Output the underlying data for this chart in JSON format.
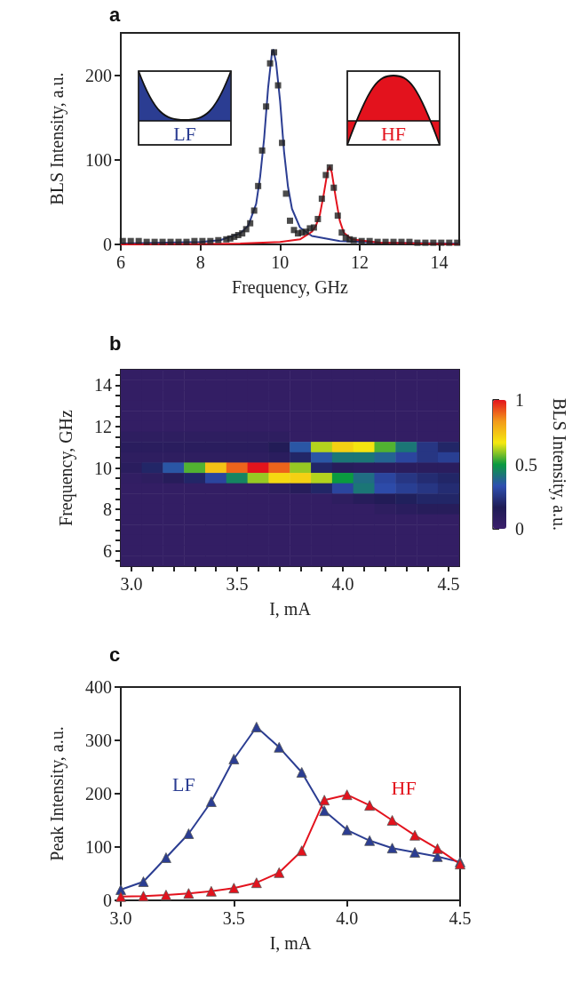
{
  "chart_data": [
    {
      "type": "line",
      "title": "a",
      "xlabel": "Frequency, GHz",
      "ylabel": "BLS Intensity, a.u.",
      "xlim": [
        6,
        14.5
      ],
      "ylim": [
        0,
        250
      ],
      "xticks": [
        6,
        8,
        10,
        12,
        14
      ],
      "yticks": [
        0,
        100,
        200
      ],
      "annotations": [
        "LF",
        "HF"
      ],
      "series": [
        {
          "type": "scatter",
          "marker": "square",
          "color": "#1f1f1f",
          "x": [
            6.05,
            6.25,
            6.45,
            6.65,
            6.85,
            7.05,
            7.25,
            7.45,
            7.65,
            7.85,
            8.05,
            8.25,
            8.45,
            8.65,
            8.75,
            8.85,
            8.95,
            9.05,
            9.15,
            9.25,
            9.35,
            9.45,
            9.55,
            9.65,
            9.75,
            9.85,
            9.95,
            10.05,
            10.15,
            10.25,
            10.35,
            10.45,
            10.55,
            10.65,
            10.75,
            10.85,
            10.95,
            11.05,
            11.15,
            11.25,
            11.35,
            11.45,
            11.55,
            11.65,
            11.75,
            11.85,
            12.05,
            12.25,
            12.45,
            12.65,
            12.85,
            13.05,
            13.25,
            13.45,
            13.65,
            13.85,
            14.05,
            14.25,
            14.45
          ],
          "values": [
            4,
            4,
            4,
            3,
            3,
            3,
            3,
            3,
            3,
            4,
            4,
            4,
            5,
            6,
            7,
            9,
            11,
            13,
            18,
            25,
            40,
            69,
            111,
            163,
            214,
            227,
            188,
            120,
            60,
            28,
            17,
            13,
            14,
            15,
            19,
            20,
            30,
            54,
            82,
            91,
            67,
            34,
            14,
            8,
            6,
            5,
            4,
            4,
            3,
            3,
            3,
            3,
            3,
            2,
            2,
            2,
            2,
            2,
            2
          ]
        },
        {
          "type": "line",
          "marker": "none",
          "color": "#2b3d92",
          "x": [
            6,
            8,
            8.5,
            9,
            9.2,
            9.4,
            9.5,
            9.6,
            9.7,
            9.8,
            9.83,
            9.9,
            10,
            10.1,
            10.2,
            10.3,
            10.5,
            10.8,
            11.5,
            12.5,
            14.5
          ],
          "values": [
            1,
            3,
            5,
            13,
            22,
            48,
            80,
            125,
            185,
            228,
            230,
            215,
            170,
            110,
            68,
            42,
            20,
            10,
            4,
            2,
            1
          ]
        },
        {
          "type": "line",
          "marker": "none",
          "color": "#e3121d",
          "x": [
            6,
            9,
            10,
            10.5,
            10.8,
            10.9,
            11,
            11.1,
            11.2,
            11.25,
            11.3,
            11.4,
            11.5,
            11.6,
            11.8,
            12.5,
            14.5
          ],
          "values": [
            0,
            1,
            3,
            6,
            15,
            22,
            35,
            60,
            88,
            92,
            85,
            55,
            28,
            14,
            6,
            2,
            0
          ]
        }
      ]
    },
    {
      "type": "heatmap",
      "title": "b",
      "xlabel": "I, mA",
      "ylabel": "Frequency, GHz",
      "clabel": "BLS Intensity, a.u.",
      "clim": [
        0,
        1
      ],
      "cticks": [
        0,
        0.5,
        1
      ],
      "categories": [
        "3.0",
        null,
        null,
        null,
        null,
        "3.5",
        null,
        null,
        null,
        null,
        "4.0",
        null,
        null,
        null,
        null,
        "4.5"
      ],
      "y_categories": [
        null,
        "14",
        null,
        null,
        null,
        "12",
        null,
        null,
        null,
        "10",
        null,
        null,
        null,
        "8",
        null,
        null,
        null,
        "6",
        null
      ],
      "cells": [
        [
          0.05,
          0.05,
          0.05,
          0.05,
          0.05,
          0.05,
          0.05,
          0.05,
          0.05,
          0.05,
          0.05,
          0.05,
          0.05,
          0.05,
          0.05,
          0.05
        ],
        [
          0.05,
          0.05,
          0.05,
          0.05,
          0.05,
          0.05,
          0.05,
          0.05,
          0.05,
          0.05,
          0.05,
          0.05,
          0.05,
          0.05,
          0.05,
          0.05
        ],
        [
          0.05,
          0.05,
          0.05,
          0.05,
          0.05,
          0.05,
          0.05,
          0.05,
          0.05,
          0.05,
          0.05,
          0.05,
          0.05,
          0.05,
          0.05,
          0.05
        ],
        [
          0.05,
          0.05,
          0.05,
          0.05,
          0.05,
          0.05,
          0.05,
          0.05,
          0.05,
          0.05,
          0.05,
          0.05,
          0.05,
          0.05,
          0.05,
          0.05
        ],
        [
          0.05,
          0.05,
          0.05,
          0.05,
          0.05,
          0.05,
          0.05,
          0.05,
          0.05,
          0.05,
          0.05,
          0.05,
          0.05,
          0.05,
          0.05,
          0.05
        ],
        [
          0.05,
          0.05,
          0.05,
          0.05,
          0.05,
          0.05,
          0.05,
          0.05,
          0.05,
          0.05,
          0.05,
          0.05,
          0.05,
          0.05,
          0.05,
          0.05
        ],
        [
          0.08,
          0.08,
          0.08,
          0.08,
          0.08,
          0.08,
          0.08,
          0.08,
          0.05,
          0.05,
          0.05,
          0.05,
          0.05,
          0.05,
          0.05,
          0.05
        ],
        [
          0.1,
          0.1,
          0.1,
          0.1,
          0.1,
          0.1,
          0.1,
          0.15,
          0.35,
          0.62,
          0.72,
          0.68,
          0.55,
          0.42,
          0.25,
          0.2
        ],
        [
          0.08,
          0.08,
          0.08,
          0.08,
          0.08,
          0.08,
          0.08,
          0.1,
          0.2,
          0.35,
          0.42,
          0.42,
          0.38,
          0.3,
          0.25,
          0.28
        ],
        [
          0.1,
          0.2,
          0.35,
          0.55,
          0.75,
          0.9,
          1,
          0.9,
          0.6,
          0.2,
          0.12,
          0.1,
          0.1,
          0.1,
          0.1,
          0.1
        ],
        [
          0.06,
          0.08,
          0.12,
          0.2,
          0.3,
          0.45,
          0.6,
          0.7,
          0.72,
          0.62,
          0.5,
          0.4,
          0.3,
          0.25,
          0.22,
          0.2
        ],
        [
          0.05,
          0.05,
          0.05,
          0.05,
          0.05,
          0.05,
          0.05,
          0.08,
          0.12,
          0.2,
          0.3,
          0.42,
          0.32,
          0.28,
          0.25,
          0.22
        ],
        [
          0.05,
          0.05,
          0.05,
          0.05,
          0.05,
          0.05,
          0.05,
          0.05,
          0.05,
          0.05,
          0.08,
          0.12,
          0.15,
          0.18,
          0.2,
          0.2
        ],
        [
          0.05,
          0.05,
          0.05,
          0.05,
          0.05,
          0.05,
          0.05,
          0.05,
          0.05,
          0.05,
          0.05,
          0.05,
          0.08,
          0.1,
          0.12,
          0.12
        ],
        [
          0.05,
          0.05,
          0.05,
          0.05,
          0.05,
          0.05,
          0.05,
          0.05,
          0.05,
          0.05,
          0.05,
          0.05,
          0.05,
          0.05,
          0.05,
          0.05
        ],
        [
          0.05,
          0.05,
          0.05,
          0.05,
          0.05,
          0.05,
          0.05,
          0.05,
          0.05,
          0.05,
          0.05,
          0.05,
          0.05,
          0.05,
          0.05,
          0.05
        ],
        [
          0.05,
          0.05,
          0.05,
          0.05,
          0.05,
          0.05,
          0.05,
          0.05,
          0.05,
          0.05,
          0.05,
          0.05,
          0.05,
          0.05,
          0.05,
          0.05
        ],
        [
          0.05,
          0.05,
          0.05,
          0.05,
          0.05,
          0.05,
          0.05,
          0.05,
          0.05,
          0.05,
          0.05,
          0.05,
          0.05,
          0.05,
          0.05,
          0.05
        ],
        [
          0.05,
          0.05,
          0.05,
          0.05,
          0.05,
          0.05,
          0.05,
          0.05,
          0.05,
          0.05,
          0.05,
          0.05,
          0.05,
          0.05,
          0.05,
          0.05
        ]
      ]
    },
    {
      "type": "line",
      "title": "c",
      "xlabel": "I, mA",
      "ylabel": "Peak Intensity, a.u.",
      "marker": "triangle",
      "x": [
        3.0,
        3.1,
        3.2,
        3.3,
        3.4,
        3.5,
        3.6,
        3.7,
        3.8,
        3.9,
        4.0,
        4.1,
        4.2,
        4.3,
        4.4,
        4.5
      ],
      "xlim": [
        3,
        4.5
      ],
      "ylim": [
        0,
        400
      ],
      "xticks": [
        {
          "value": 3,
          "label": "3.0"
        },
        {
          "value": 3.5,
          "label": "3.5"
        },
        {
          "value": 4,
          "label": "4.0"
        },
        {
          "value": 4.5,
          "label": "4.5"
        }
      ],
      "yticks": [
        0,
        100,
        200,
        300,
        400
      ],
      "series": [
        {
          "name": "LF",
          "color": "#2b3d92",
          "values": [
            20,
            35,
            80,
            125,
            185,
            265,
            325,
            287,
            240,
            168,
            132,
            112,
            98,
            90,
            82,
            72
          ]
        },
        {
          "name": "HF",
          "color": "#e3121d",
          "values": [
            7,
            8,
            10,
            13,
            17,
            23,
            33,
            52,
            93,
            188,
            198,
            178,
            150,
            122,
            97,
            68
          ]
        }
      ]
    }
  ]
}
